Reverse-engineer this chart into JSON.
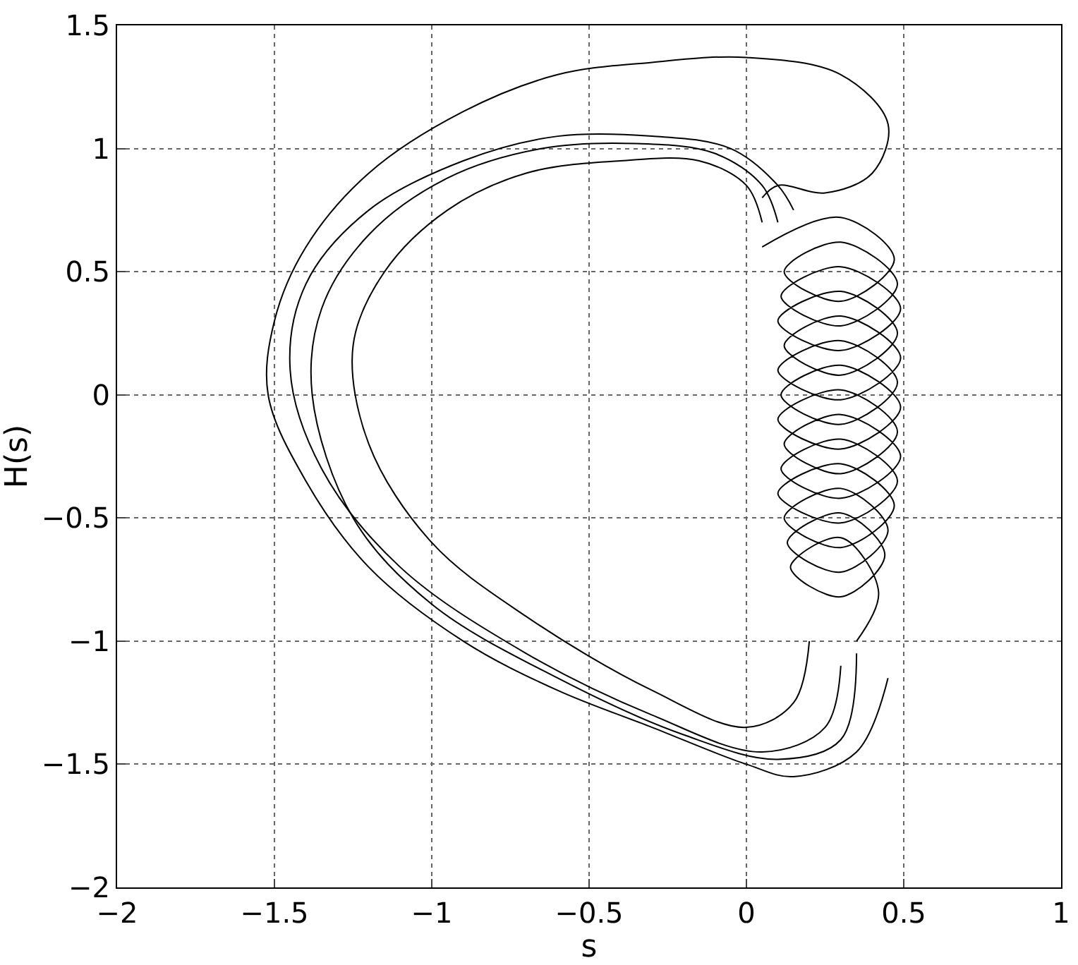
{
  "chart_data": {
    "type": "line",
    "xlabel": "s",
    "ylabel": "H(s)",
    "xlim": [
      -2,
      1
    ],
    "ylim": [
      -2,
      1.5
    ],
    "xticks": [
      {
        "value": -2,
        "label": "−2"
      },
      {
        "value": -1.5,
        "label": "−1.5"
      },
      {
        "value": -1,
        "label": "−1"
      },
      {
        "value": -0.5,
        "label": "−0.5"
      },
      0,
      0.5,
      1
    ],
    "yticks": [
      {
        "value": -2,
        "label": "−2"
      },
      {
        "value": -1.5,
        "label": "−1.5"
      },
      {
        "value": -1,
        "label": "−1"
      },
      {
        "value": -0.5,
        "label": "−0.5"
      },
      0,
      0.5,
      1,
      1.5
    ],
    "grid": true,
    "marker": "none",
    "line_style": "solid",
    "series": [
      {
        "color": "#000000",
        "x": [
          0.45,
          0.35,
          0.15,
          0,
          -0.3,
          -0.6,
          -0.9,
          -1.2,
          -1.4,
          -1.52,
          -1.5,
          -1.4,
          -1.2,
          -0.9,
          -0.6,
          -0.3,
          0,
          0.3,
          0.45,
          0.4,
          0.25,
          0.1,
          0.05
        ],
        "values": [
          -1.15,
          -1.45,
          -1.55,
          -1.5,
          -1.35,
          -1.2,
          -1.0,
          -0.7,
          -0.35,
          0,
          0.3,
          0.6,
          0.9,
          1.15,
          1.3,
          1.35,
          1.37,
          1.3,
          1.1,
          0.9,
          0.82,
          0.85,
          0.8
        ]
      },
      {
        "color": "#000000",
        "x": [
          0.3,
          0.25,
          0.05,
          -0.3,
          -0.7,
          -1.1,
          -1.35,
          -1.45,
          -1.4,
          -1.2,
          -0.9,
          -0.6,
          -0.3,
          -0.05,
          0.1,
          0.15
        ],
        "values": [
          -1.1,
          -1.35,
          -1.45,
          -1.3,
          -1.05,
          -0.7,
          -0.3,
          0.1,
          0.45,
          0.75,
          0.95,
          1.05,
          1.05,
          1.0,
          0.85,
          0.75
        ]
      },
      {
        "color": "#000000",
        "x": [
          0.35,
          0.3,
          0.1,
          -0.2,
          -0.6,
          -1.0,
          -1.25,
          -1.38,
          -1.35,
          -1.2,
          -0.95,
          -0.65,
          -0.35,
          -0.1,
          0.05,
          0.1
        ],
        "values": [
          -1.05,
          -1.4,
          -1.48,
          -1.38,
          -1.15,
          -0.85,
          -0.5,
          0,
          0.35,
          0.65,
          0.88,
          1.0,
          1.02,
          0.98,
          0.85,
          0.7
        ]
      },
      {
        "color": "#000000",
        "x": [
          0.2,
          0.15,
          0,
          -0.3,
          -0.7,
          -1.0,
          -1.2,
          -1.25,
          -1.15,
          -0.95,
          -0.7,
          -0.4,
          -0.15,
          0,
          0.05
        ],
        "values": [
          -1.0,
          -1.25,
          -1.35,
          -1.2,
          -0.9,
          -0.6,
          -0.2,
          0.2,
          0.5,
          0.75,
          0.9,
          0.95,
          0.95,
          0.85,
          0.7
        ]
      },
      {
        "color": "#000000",
        "x": [
          0.05,
          0.3,
          0.47,
          0.3,
          0.12,
          0.3,
          0.48,
          0.3,
          0.11,
          0.3,
          0.49,
          0.3,
          0.1,
          0.3,
          0.48,
          0.3,
          0.12,
          0.3,
          0.49,
          0.3,
          0.1,
          0.3,
          0.48,
          0.3,
          0.11,
          0.3,
          0.49,
          0.3,
          0.1,
          0.3,
          0.48,
          0.3,
          0.12,
          0.3,
          0.49,
          0.3,
          0.11,
          0.3,
          0.48,
          0.3,
          0.1,
          0.3,
          0.47,
          0.3,
          0.12,
          0.3,
          0.45,
          0.3,
          0.13,
          0.3,
          0.44,
          0.3,
          0.14,
          0.3,
          0.42,
          0.35
        ],
        "values": [
          0.6,
          0.72,
          0.55,
          0.38,
          0.5,
          0.62,
          0.45,
          0.28,
          0.4,
          0.52,
          0.35,
          0.18,
          0.3,
          0.42,
          0.25,
          0.08,
          0.2,
          0.32,
          0.15,
          -0.02,
          0.1,
          0.22,
          0.05,
          -0.12,
          0,
          0.12,
          -0.05,
          -0.22,
          -0.1,
          0.02,
          -0.15,
          -0.32,
          -0.2,
          -0.08,
          -0.25,
          -0.42,
          -0.3,
          -0.18,
          -0.35,
          -0.52,
          -0.4,
          -0.28,
          -0.45,
          -0.62,
          -0.5,
          -0.38,
          -0.55,
          -0.72,
          -0.6,
          -0.48,
          -0.65,
          -0.82,
          -0.7,
          -0.58,
          -0.8,
          -1.0
        ]
      }
    ]
  }
}
